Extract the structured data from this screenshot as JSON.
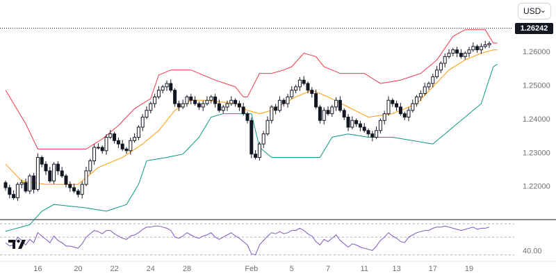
{
  "currency": {
    "label": "USD",
    "chevron_icon": "chevron-down-icon"
  },
  "price_badge": "1.26242",
  "logo": {
    "name": "tradingview-logo"
  },
  "colors": {
    "candle": "#131722",
    "upper_band": "#f23645",
    "middle_band": "#ff9800",
    "lower_band": "#089981",
    "rsi": "#7e57c2",
    "axis_text": "#707070"
  },
  "chart_data": {
    "type": "candlestick",
    "price_axis": {
      "ticks": [
        1.22,
        1.23,
        1.24,
        1.25,
        1.26
      ],
      "labels": [
        "1.22000",
        "1.23000",
        "1.24000",
        "1.25000",
        "1.26000"
      ],
      "range": [
        1.21,
        1.275
      ]
    },
    "x_labels": [
      {
        "label": "16",
        "i": 8
      },
      {
        "label": "20",
        "i": 18
      },
      {
        "label": "22",
        "i": 27
      },
      {
        "label": "24",
        "i": 36
      },
      {
        "label": "28",
        "i": 45
      },
      {
        "label": "Feb",
        "i": 61
      },
      {
        "label": "5",
        "i": 71
      },
      {
        "label": "7",
        "i": 80
      },
      {
        "label": "11",
        "i": 89
      },
      {
        "label": "13",
        "i": 97
      },
      {
        "label": "17",
        "i": 106
      },
      {
        "label": "19",
        "i": 115
      }
    ],
    "current_price": 1.26242,
    "close": [
      1.2195,
      1.2175,
      1.2165,
      1.2205,
      1.221,
      1.2185,
      1.223,
      1.219,
      1.2285,
      1.2265,
      1.2245,
      1.2215,
      1.2265,
      1.2245,
      1.223,
      1.2205,
      1.2195,
      1.2185,
      1.2175,
      1.2205,
      1.2245,
      1.2275,
      1.2315,
      1.2315,
      1.2305,
      1.2345,
      1.2355,
      1.2335,
      1.2325,
      1.231,
      1.2305,
      1.2335,
      1.2345,
      1.2375,
      1.2405,
      1.2425,
      1.2445,
      1.2465,
      1.2485,
      1.2495,
      1.2505,
      1.2485,
      1.2445,
      1.2435,
      1.2445,
      1.2465,
      1.2455,
      1.2445,
      1.2435,
      1.2445,
      1.2455,
      1.2465,
      1.2445,
      1.2425,
      1.2435,
      1.2445,
      1.2455,
      1.2445,
      1.2435,
      1.2415,
      1.2395,
      1.2295,
      1.2285,
      1.2325,
      1.2355,
      1.2395,
      1.2435,
      1.2425,
      1.2455,
      1.2445,
      1.2465,
      1.2485,
      1.2495,
      1.2515,
      1.2505,
      1.2485,
      1.2475,
      1.2435,
      1.2395,
      1.2425,
      1.2415,
      1.2435,
      1.2455,
      1.2425,
      1.2405,
      1.2375,
      1.2395,
      1.2385,
      1.2375,
      1.2365,
      1.2355,
      1.2345,
      1.2365,
      1.2395,
      1.2415,
      1.2455,
      1.2445,
      1.2435,
      1.2415,
      1.2405,
      1.2425,
      1.2445,
      1.2465,
      1.2475,
      1.2495,
      1.2505,
      1.2525,
      1.2545,
      1.2565,
      1.2585,
      1.2595,
      1.2605,
      1.2595,
      1.2585,
      1.2595,
      1.2605,
      1.2615,
      1.2605,
      1.2615,
      1.262,
      1.2624
    ],
    "bollinger": {
      "upper_keys": [
        [
          0,
          1.2485
        ],
        [
          5,
          1.2385
        ],
        [
          8,
          1.231
        ],
        [
          20,
          1.231
        ],
        [
          24,
          1.234
        ],
        [
          28,
          1.238
        ],
        [
          32,
          1.243
        ],
        [
          36,
          1.246
        ],
        [
          38,
          1.253
        ],
        [
          41,
          1.2545
        ],
        [
          46,
          1.2545
        ],
        [
          52,
          1.2515
        ],
        [
          57,
          1.2495
        ],
        [
          59,
          1.2465
        ],
        [
          60,
          1.2465
        ],
        [
          63,
          1.2535
        ],
        [
          66,
          1.2535
        ],
        [
          69,
          1.2545
        ],
        [
          71,
          1.2555
        ],
        [
          74,
          1.2595
        ],
        [
          77,
          1.2585
        ],
        [
          79,
          1.2555
        ],
        [
          83,
          1.2535
        ],
        [
          89,
          1.2535
        ],
        [
          93,
          1.2505
        ],
        [
          98,
          1.2515
        ],
        [
          103,
          1.2535
        ],
        [
          107,
          1.2575
        ],
        [
          111,
          1.2645
        ],
        [
          114,
          1.2665
        ],
        [
          119,
          1.2665
        ],
        [
          121,
          1.2625
        ]
      ],
      "middle_keys": [
        [
          0,
          1.2265
        ],
        [
          4,
          1.2215
        ],
        [
          10,
          1.2205
        ],
        [
          18,
          1.2205
        ],
        [
          23,
          1.2255
        ],
        [
          29,
          1.2285
        ],
        [
          34,
          1.2325
        ],
        [
          38,
          1.2365
        ],
        [
          42,
          1.2425
        ],
        [
          46,
          1.2455
        ],
        [
          50,
          1.2455
        ],
        [
          57,
          1.2445
        ],
        [
          60,
          1.2425
        ],
        [
          63,
          1.2415
        ],
        [
          66,
          1.2425
        ],
        [
          69,
          1.2445
        ],
        [
          72,
          1.2465
        ],
        [
          76,
          1.2485
        ],
        [
          80,
          1.2465
        ],
        [
          85,
          1.2435
        ],
        [
          90,
          1.2405
        ],
        [
          96,
          1.2415
        ],
        [
          102,
          1.2445
        ],
        [
          106,
          1.2495
        ],
        [
          110,
          1.2545
        ],
        [
          114,
          1.2575
        ],
        [
          118,
          1.2595
        ],
        [
          121,
          1.2605
        ]
      ],
      "lower_keys": [
        [
          0,
          1.2065
        ],
        [
          6,
          1.2085
        ],
        [
          9,
          1.2125
        ],
        [
          12,
          1.2145
        ],
        [
          20,
          1.2135
        ],
        [
          25,
          1.2125
        ],
        [
          30,
          1.2145
        ],
        [
          33,
          1.2205
        ],
        [
          35,
          1.2275
        ],
        [
          40,
          1.2285
        ],
        [
          44,
          1.2295
        ],
        [
          48,
          1.2345
        ],
        [
          51,
          1.2405
        ],
        [
          54,
          1.2415
        ],
        [
          58,
          1.2415
        ],
        [
          61,
          1.2415
        ],
        [
          63,
          1.2315
        ],
        [
          66,
          1.2285
        ],
        [
          72,
          1.2285
        ],
        [
          78,
          1.2285
        ],
        [
          81,
          1.2345
        ],
        [
          85,
          1.2355
        ],
        [
          90,
          1.2345
        ],
        [
          96,
          1.2345
        ],
        [
          101,
          1.2335
        ],
        [
          106,
          1.2325
        ],
        [
          110,
          1.2365
        ],
        [
          114,
          1.2405
        ],
        [
          118,
          1.2445
        ],
        [
          121,
          1.2555
        ],
        [
          123,
          1.257
        ]
      ]
    },
    "rsi": {
      "tick": 40.0,
      "tick_label": "40.00",
      "range": [
        34,
        64
      ],
      "values": [
        47,
        44,
        45,
        52,
        49,
        45,
        50,
        47,
        56,
        53,
        50,
        47,
        53,
        49,
        47,
        44,
        44,
        43,
        42,
        46,
        52,
        55,
        58,
        57,
        55,
        58,
        58,
        55,
        53,
        51,
        50,
        53,
        54,
        56,
        59,
        61,
        61,
        62,
        62,
        61,
        60,
        58,
        52,
        51,
        53,
        56,
        54,
        52,
        51,
        53,
        54,
        56,
        52,
        50,
        52,
        54,
        56,
        53,
        51,
        48,
        45,
        37,
        36,
        45,
        49,
        53,
        56,
        55,
        57,
        55,
        56,
        58,
        58,
        60,
        58,
        55,
        53,
        48,
        45,
        50,
        48,
        51,
        54,
        49,
        46,
        43,
        46,
        45,
        43,
        42,
        41,
        40,
        44,
        49,
        52,
        56,
        53,
        51,
        48,
        47,
        52,
        54,
        56,
        57,
        58,
        58,
        60,
        61,
        61,
        62,
        61,
        60,
        59,
        58,
        59,
        60,
        61,
        59,
        60,
        60,
        61
      ]
    }
  }
}
